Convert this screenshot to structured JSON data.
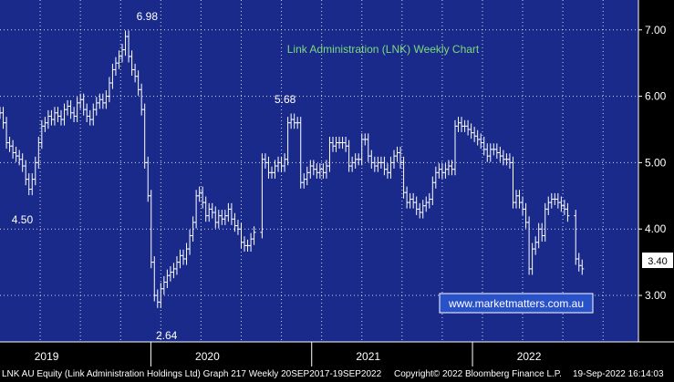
{
  "chart_data": {
    "type": "ohlc",
    "title": "Link Administration (LNK) Weekly Chart",
    "watermark": "www.marketmatters.com.au",
    "yticks": [
      "3.00",
      "4.00",
      "5.00",
      "6.00",
      "7.00"
    ],
    "ylim": [
      2.3,
      7.45
    ],
    "xlim": [
      2018.75,
      2022.72
    ],
    "year_labels": [
      {
        "label": "2019",
        "x": 2019.0
      },
      {
        "label": "2020",
        "x": 2020.0
      },
      {
        "label": "2021",
        "x": 2021.0
      },
      {
        "label": "2022",
        "x": 2022.0
      }
    ],
    "year_ticks": [
      2019.0,
      2020.0,
      2021.0,
      2022.0
    ],
    "annotations": [
      {
        "text": "6.98",
        "x": 2019.58,
        "y": 6.98
      },
      {
        "text": "4.50",
        "x": 2018.9,
        "y": 4.5
      },
      {
        "text": "2.64",
        "x": 2019.82,
        "y": 2.64
      },
      {
        "text": "5.68",
        "x": 2020.58,
        "y": 5.68
      }
    ],
    "last_price_label": "3.40",
    "last_price": 3.4,
    "series": [
      {
        "values": [
          [
            2018.75,
            5.75
          ],
          [
            2018.77,
            5.6
          ],
          [
            2018.79,
            5.3
          ],
          [
            2018.81,
            5.25
          ],
          [
            2018.83,
            5.15
          ],
          [
            2018.85,
            5.1
          ],
          [
            2018.87,
            5.05
          ],
          [
            2018.89,
            4.95
          ],
          [
            2018.91,
            4.75
          ],
          [
            2018.93,
            4.6
          ],
          [
            2018.95,
            4.75
          ],
          [
            2018.97,
            5.0
          ],
          [
            2018.99,
            5.3
          ],
          [
            2019.01,
            5.55
          ],
          [
            2019.03,
            5.6
          ],
          [
            2019.05,
            5.7
          ],
          [
            2019.07,
            5.65
          ],
          [
            2019.09,
            5.75
          ],
          [
            2019.11,
            5.7
          ],
          [
            2019.13,
            5.65
          ],
          [
            2019.15,
            5.8
          ],
          [
            2019.17,
            5.85
          ],
          [
            2019.19,
            5.75
          ],
          [
            2019.21,
            5.7
          ],
          [
            2019.23,
            5.9
          ],
          [
            2019.25,
            5.95
          ],
          [
            2019.27,
            5.8
          ],
          [
            2019.29,
            5.7
          ],
          [
            2019.31,
            5.65
          ],
          [
            2019.33,
            5.8
          ],
          [
            2019.35,
            5.9
          ],
          [
            2019.37,
            5.95
          ],
          [
            2019.39,
            5.9
          ],
          [
            2019.41,
            6.0
          ],
          [
            2019.43,
            6.2
          ],
          [
            2019.45,
            6.4
          ],
          [
            2019.47,
            6.5
          ],
          [
            2019.49,
            6.6
          ],
          [
            2019.51,
            6.7
          ],
          [
            2019.53,
            6.9
          ],
          [
            2019.55,
            6.6
          ],
          [
            2019.57,
            6.4
          ],
          [
            2019.59,
            6.3
          ],
          [
            2019.61,
            6.1
          ],
          [
            2019.63,
            5.8
          ],
          [
            2019.65,
            5.0
          ],
          [
            2019.67,
            4.5
          ],
          [
            2019.69,
            3.5
          ],
          [
            2019.71,
            3.0
          ],
          [
            2019.73,
            2.9
          ],
          [
            2019.75,
            3.1
          ],
          [
            2019.77,
            3.2
          ],
          [
            2019.79,
            3.3
          ],
          [
            2019.81,
            3.35
          ],
          [
            2019.83,
            3.4
          ],
          [
            2019.85,
            3.5
          ],
          [
            2019.87,
            3.6
          ],
          [
            2019.89,
            3.55
          ],
          [
            2019.91,
            3.7
          ],
          [
            2019.93,
            3.9
          ],
          [
            2019.95,
            4.1
          ],
          [
            2019.97,
            4.5
          ],
          [
            2019.99,
            4.55
          ],
          [
            2020.01,
            4.4
          ],
          [
            2020.03,
            4.2
          ],
          [
            2020.05,
            4.3
          ],
          [
            2020.07,
            4.25
          ],
          [
            2020.09,
            4.1
          ],
          [
            2020.11,
            4.2
          ],
          [
            2020.13,
            4.15
          ],
          [
            2020.15,
            4.2
          ],
          [
            2020.17,
            4.3
          ],
          [
            2020.19,
            4.15
          ],
          [
            2020.21,
            4.05
          ],
          [
            2020.23,
            4.0
          ],
          [
            2020.25,
            3.8
          ],
          [
            2020.27,
            3.75
          ],
          [
            2020.29,
            3.75
          ],
          [
            2020.31,
            3.85
          ],
          [
            2020.33,
            3.95
          ],
          [
            2020.38,
            5.05
          ],
          [
            2020.4,
            5.0
          ],
          [
            2020.42,
            4.85
          ],
          [
            2020.44,
            4.85
          ],
          [
            2020.46,
            4.95
          ],
          [
            2020.48,
            5.0
          ],
          [
            2020.5,
            4.95
          ],
          [
            2020.52,
            5.05
          ],
          [
            2020.54,
            5.6
          ],
          [
            2020.56,
            5.65
          ],
          [
            2020.58,
            5.6
          ],
          [
            2020.6,
            5.6
          ],
          [
            2020.62,
            4.7
          ],
          [
            2020.64,
            4.75
          ],
          [
            2020.66,
            4.85
          ],
          [
            2020.68,
            4.95
          ],
          [
            2020.7,
            4.9
          ],
          [
            2020.72,
            4.85
          ],
          [
            2020.74,
            4.9
          ],
          [
            2020.76,
            4.85
          ],
          [
            2020.78,
            4.95
          ],
          [
            2020.8,
            5.3
          ],
          [
            2020.82,
            5.25
          ],
          [
            2020.84,
            5.3
          ],
          [
            2020.86,
            5.3
          ],
          [
            2020.88,
            5.3
          ],
          [
            2020.9,
            5.25
          ],
          [
            2020.92,
            4.95
          ],
          [
            2020.94,
            5.0
          ],
          [
            2020.96,
            5.05
          ],
          [
            2020.98,
            5.05
          ],
          [
            2021.0,
            5.35
          ],
          [
            2021.02,
            5.35
          ],
          [
            2021.04,
            5.1
          ],
          [
            2021.06,
            5.0
          ],
          [
            2021.08,
            4.95
          ],
          [
            2021.1,
            5.0
          ],
          [
            2021.12,
            5.0
          ],
          [
            2021.14,
            4.9
          ],
          [
            2021.16,
            4.85
          ],
          [
            2021.18,
            5.0
          ],
          [
            2021.2,
            5.1
          ],
          [
            2021.22,
            5.15
          ],
          [
            2021.24,
            5.0
          ],
          [
            2021.26,
            4.55
          ],
          [
            2021.28,
            4.4
          ],
          [
            2021.3,
            4.45
          ],
          [
            2021.32,
            4.4
          ],
          [
            2021.34,
            4.3
          ],
          [
            2021.36,
            4.25
          ],
          [
            2021.38,
            4.35
          ],
          [
            2021.4,
            4.4
          ],
          [
            2021.42,
            4.45
          ],
          [
            2021.44,
            4.7
          ],
          [
            2021.46,
            4.85
          ],
          [
            2021.48,
            4.9
          ],
          [
            2021.5,
            4.85
          ],
          [
            2021.52,
            4.9
          ],
          [
            2021.54,
            4.95
          ],
          [
            2021.56,
            4.9
          ],
          [
            2021.58,
            5.55
          ],
          [
            2021.6,
            5.6
          ],
          [
            2021.62,
            5.55
          ],
          [
            2021.64,
            5.55
          ],
          [
            2021.66,
            5.5
          ],
          [
            2021.68,
            5.45
          ],
          [
            2021.7,
            5.4
          ],
          [
            2021.72,
            5.35
          ],
          [
            2021.74,
            5.3
          ],
          [
            2021.76,
            5.2
          ],
          [
            2021.78,
            5.1
          ],
          [
            2021.8,
            5.2
          ],
          [
            2021.82,
            5.2
          ],
          [
            2021.84,
            5.15
          ],
          [
            2021.86,
            5.1
          ],
          [
            2021.88,
            5.05
          ],
          [
            2021.9,
            5.05
          ],
          [
            2021.92,
            5.0
          ],
          [
            2021.94,
            4.4
          ],
          [
            2021.96,
            4.5
          ],
          [
            2021.98,
            4.4
          ],
          [
            2022.0,
            4.3
          ],
          [
            2022.02,
            4.1
          ],
          [
            2022.04,
            3.4
          ],
          [
            2022.06,
            3.7
          ],
          [
            2022.08,
            3.8
          ],
          [
            2022.1,
            4.0
          ],
          [
            2022.12,
            3.9
          ],
          [
            2022.14,
            4.3
          ],
          [
            2022.16,
            4.4
          ],
          [
            2022.18,
            4.45
          ],
          [
            2022.2,
            4.45
          ],
          [
            2022.22,
            4.4
          ],
          [
            2022.24,
            4.35
          ],
          [
            2022.26,
            4.3
          ],
          [
            2022.28,
            4.2
          ],
          [
            2022.33,
            3.55
          ],
          [
            2022.35,
            3.45
          ],
          [
            2022.37,
            3.4
          ]
        ]
      }
    ]
  },
  "footer": {
    "left": "LNK AU Equity (Link Administration Holdings Ltd) Graph 217  Weekly 20SEP2017-19SEP2022",
    "center": "Copyright© 2022 Bloomberg Finance L.P.",
    "right": "19-Sep-2022 16:14:03"
  },
  "colors": {
    "background": "#1a2a8a",
    "bars": "#ffffff",
    "grid": "#ffffff",
    "title": "#7dd87d",
    "watermark_text": "#ffffff",
    "watermark_box": "#2a52c8",
    "text": "#ffffff"
  }
}
